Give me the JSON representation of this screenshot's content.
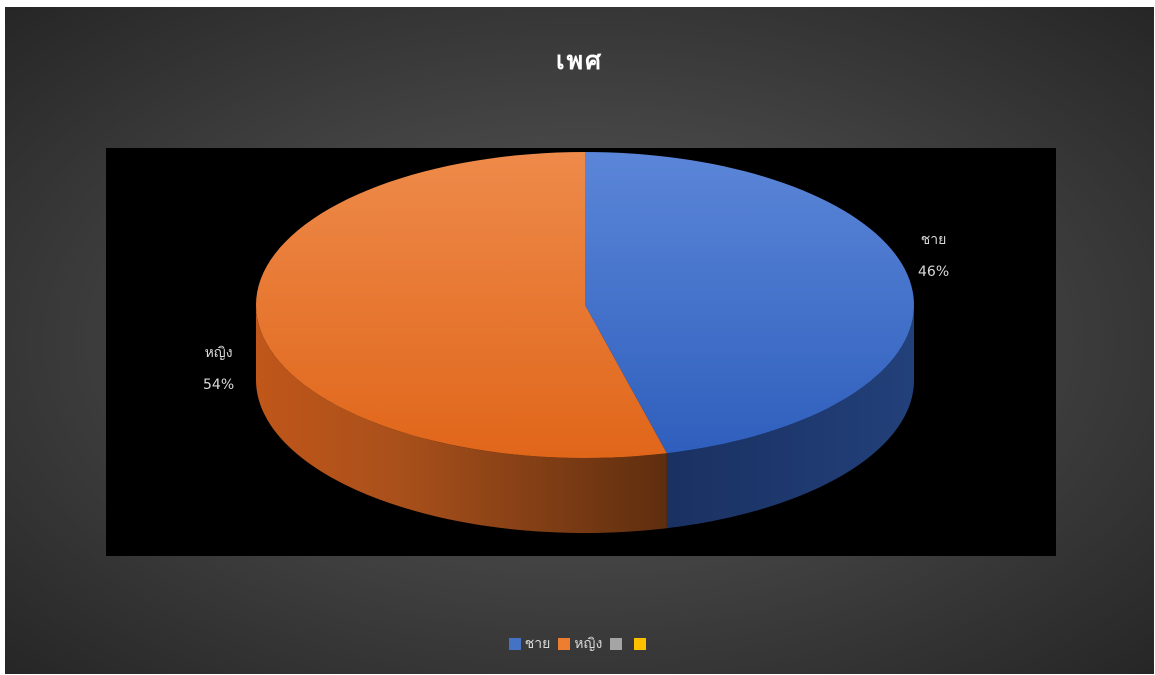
{
  "chart_data": {
    "type": "pie",
    "title": "เพศ",
    "style": "3d",
    "slices": [
      {
        "label": "ชาย",
        "value": 46,
        "percent_label": "46%",
        "color": "#4472C4"
      },
      {
        "label": "หญิง",
        "value": 54,
        "percent_label": "54%",
        "color": "#ED7D31"
      },
      {
        "label": "",
        "value": 0,
        "percent_label": "",
        "color": "#A5A5A5"
      },
      {
        "label": "",
        "value": 0,
        "percent_label": "",
        "color": "#FFC000"
      }
    ],
    "legend_position": "bottom",
    "background": "#404040",
    "plot_background": "#000000"
  }
}
